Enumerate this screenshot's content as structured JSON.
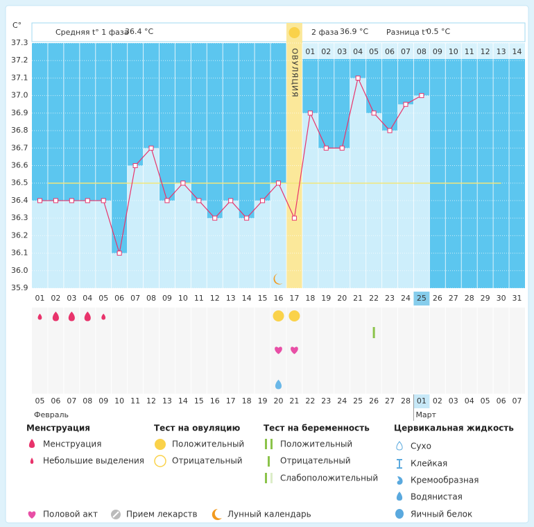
{
  "chart_data": {
    "type": "line",
    "y_unit": "C°",
    "header": {
      "phase1_label": "Средняя t° 1 фаза",
      "phase1_value": "36.4 °C",
      "phase2_label": "2 фаза",
      "phase2_value": "36.9 °C",
      "diff_label": "Разница t°",
      "diff_value": "0.5 °C"
    },
    "ovulation_label": "ОВУЛЯЦИЯ",
    "ovulation_day": "17",
    "current_day": "25",
    "phase2_days": [
      "01",
      "02",
      "03",
      "04",
      "05",
      "06",
      "07",
      "08",
      "09",
      "10",
      "11",
      "12",
      "13",
      "14"
    ],
    "categories": [
      "01",
      "02",
      "03",
      "04",
      "05",
      "06",
      "07",
      "08",
      "09",
      "10",
      "11",
      "12",
      "13",
      "14",
      "15",
      "16",
      "17",
      "18",
      "19",
      "20",
      "21",
      "22",
      "23",
      "24",
      "25",
      "26",
      "27",
      "28",
      "29",
      "30",
      "31"
    ],
    "values": [
      36.4,
      36.4,
      36.4,
      36.4,
      36.4,
      36.1,
      36.6,
      36.7,
      36.4,
      36.5,
      36.4,
      36.3,
      36.4,
      36.3,
      36.4,
      36.5,
      36.3,
      36.9,
      36.7,
      36.7,
      37.1,
      36.9,
      36.8,
      36.95,
      37.0,
      null,
      null,
      null,
      null,
      null,
      null
    ],
    "color": "#e8336b",
    "bar_color": "#cdeefb",
    "plot_color": "#5cc6ef",
    "ovulation_color": "#fbe89a",
    "coverline": 36.5,
    "coverline_color": "#f2e67a",
    "ylim": [
      35.9,
      37.3
    ],
    "yticks": [
      35.9,
      {
        "value": 36,
        "label": "36.0"
      },
      36.1,
      36.2,
      36.3,
      36.4,
      36.5,
      36.6,
      36.7,
      36.8,
      36.9,
      {
        "value": 37,
        "label": "37.0"
      },
      37.1,
      37.2,
      37.3
    ],
    "grid": true,
    "dates": [
      {
        "text": "05",
        "weekend": false
      },
      {
        "text": "06",
        "weekend": false
      },
      {
        "text": "07",
        "weekend": true
      },
      {
        "text": "08",
        "weekend": true
      },
      {
        "text": "09",
        "weekend": false
      },
      {
        "text": "10",
        "weekend": false
      },
      {
        "text": "11",
        "weekend": false
      },
      {
        "text": "12",
        "weekend": false
      },
      {
        "text": "13",
        "weekend": false
      },
      {
        "text": "14",
        "weekend": true
      },
      {
        "text": "15",
        "weekend": true
      },
      {
        "text": "16",
        "weekend": false
      },
      {
        "text": "17",
        "weekend": false
      },
      {
        "text": "18",
        "weekend": false
      },
      {
        "text": "19",
        "weekend": false
      },
      {
        "text": "20",
        "weekend": false
      },
      {
        "text": "21",
        "weekend": true
      },
      {
        "text": "22",
        "weekend": true
      },
      {
        "text": "23",
        "weekend": false
      },
      {
        "text": "24",
        "weekend": false
      },
      {
        "text": "25",
        "weekend": false
      },
      {
        "text": "26",
        "weekend": false
      },
      {
        "text": "27",
        "weekend": false
      },
      {
        "text": "28",
        "weekend": true
      },
      {
        "text": "01",
        "weekend": false
      },
      {
        "text": "02",
        "weekend": false
      },
      {
        "text": "03",
        "weekend": false
      },
      {
        "text": "04",
        "weekend": false
      },
      {
        "text": "05",
        "weekend": false
      },
      {
        "text": "06",
        "weekend": false
      },
      {
        "text": "07",
        "weekend": true
      }
    ],
    "months": [
      {
        "text": "Февраль",
        "day": "01"
      },
      {
        "text": "Март",
        "day": "25"
      }
    ],
    "events": [
      {
        "type": "menstruation",
        "day": "01",
        "size": "small"
      },
      {
        "type": "menstruation",
        "day": "02",
        "size": "big"
      },
      {
        "type": "menstruation",
        "day": "03",
        "size": "big"
      },
      {
        "type": "menstruation",
        "day": "04",
        "size": "big"
      },
      {
        "type": "menstruation",
        "day": "05",
        "size": "small"
      },
      {
        "type": "ovulation_test",
        "day": "16",
        "size": "positive"
      },
      {
        "type": "ovulation_test",
        "day": "17",
        "size": "positive"
      },
      {
        "type": "pregnancy_test",
        "day": "22",
        "size": "negative"
      },
      {
        "type": "sex",
        "day": "16",
        "size": "big"
      },
      {
        "type": "sex",
        "day": "17",
        "size": "big"
      },
      {
        "type": "cervical",
        "day": "16",
        "size": "watery"
      },
      {
        "type": "moon",
        "day": "16",
        "size": "big"
      }
    ]
  },
  "legend": {
    "groups": [
      {
        "title": "Менструация",
        "items": [
          "Менструация",
          "Небольшие выделения"
        ]
      },
      {
        "title": "Тест на овуляцию",
        "items": [
          "Положительный",
          "Отрицательный"
        ]
      },
      {
        "title": "Тест на беременность",
        "items": [
          "Положительный",
          "Отрицательный",
          "Слабоположительный"
        ]
      },
      {
        "title": "Цервикальная жидкость",
        "items": [
          "Сухо",
          "Клейкая",
          "Кремообразная",
          "Водянистая",
          "Яичный белок"
        ]
      }
    ],
    "extras": [
      "Половой акт",
      "Прием лекарств",
      "Лунный календарь"
    ]
  }
}
